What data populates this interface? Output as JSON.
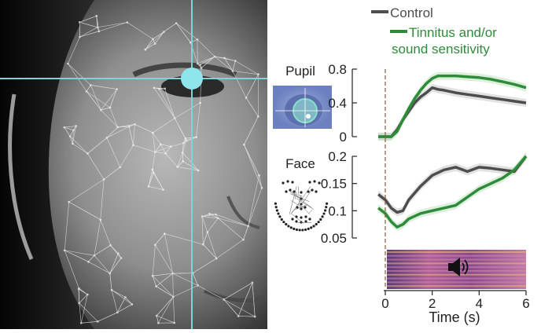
{
  "legend": [
    {
      "label": "Control",
      "color": "#4d4d4d"
    },
    {
      "label": "Tinnitus and/or sound sensitivity",
      "label_lines": [
        "Tinnitus and/or",
        "sound sensitivity"
      ],
      "color": "#2e8b3a"
    }
  ],
  "panel_labels": {
    "pupil": "Pupil",
    "face": "Face"
  },
  "sound_icon": "speaker-icon",
  "colors": {
    "control": "#4d4d4d",
    "tinnitus": "#2e8b3a",
    "crosshair": "#7fd4d4",
    "stimulus_line": "#8a5a3c"
  },
  "chart_data": [
    {
      "type": "line",
      "name": "pupil",
      "title": "",
      "xlabel": "",
      "ylabel": "",
      "xlim": [
        0,
        6
      ],
      "ylim": [
        0,
        0.8
      ],
      "yticks": [
        "0",
        "0.4",
        "0.8"
      ],
      "ytick_values": [
        0,
        0.4,
        0.8
      ],
      "x": [
        -0.3,
        0,
        0.25,
        0.5,
        0.75,
        1.0,
        1.25,
        1.5,
        1.75,
        2.0,
        2.25,
        2.5,
        3.0,
        3.5,
        4.0,
        4.5,
        5.0,
        5.5,
        6.0
      ],
      "series": [
        {
          "name": "Control",
          "values": [
            0.0,
            0.0,
            0.0,
            0.08,
            0.2,
            0.3,
            0.4,
            0.47,
            0.52,
            0.58,
            0.56,
            0.55,
            0.52,
            0.5,
            0.48,
            0.46,
            0.44,
            0.42,
            0.4
          ]
        },
        {
          "name": "Tinnitus and/or sound sensitivity",
          "values": [
            0.0,
            0.0,
            0.0,
            0.06,
            0.2,
            0.33,
            0.45,
            0.55,
            0.63,
            0.69,
            0.72,
            0.72,
            0.72,
            0.71,
            0.7,
            0.68,
            0.65,
            0.62,
            0.58
          ]
        }
      ]
    },
    {
      "type": "line",
      "name": "face",
      "title": "",
      "xlabel": "Time (s)",
      "ylabel": "",
      "xlim": [
        0,
        6
      ],
      "ylim": [
        0.05,
        0.2
      ],
      "yticks": [
        "0.2",
        "0.15",
        "0.1",
        "0.05"
      ],
      "ytick_values": [
        0.2,
        0.15,
        0.1,
        0.05
      ],
      "xticks": [
        "0",
        "2",
        "4",
        "6"
      ],
      "xtick_values": [
        0,
        2,
        4,
        6
      ],
      "x": [
        -0.3,
        0,
        0.25,
        0.5,
        0.75,
        1.0,
        1.5,
        2.0,
        2.5,
        3.0,
        3.5,
        4.0,
        4.5,
        5.0,
        5.5,
        6.0
      ],
      "series": [
        {
          "name": "Control",
          "values": [
            0.13,
            0.12,
            0.105,
            0.097,
            0.1,
            0.12,
            0.145,
            0.165,
            0.175,
            0.18,
            0.172,
            0.18,
            0.178,
            0.175,
            0.172,
            0.2
          ]
        },
        {
          "name": "Tinnitus and/or sound sensitivity",
          "values": [
            0.105,
            0.095,
            0.08,
            0.07,
            0.075,
            0.085,
            0.095,
            0.1,
            0.105,
            0.11,
            0.125,
            0.14,
            0.15,
            0.16,
            0.175,
            0.2
          ]
        }
      ]
    }
  ]
}
